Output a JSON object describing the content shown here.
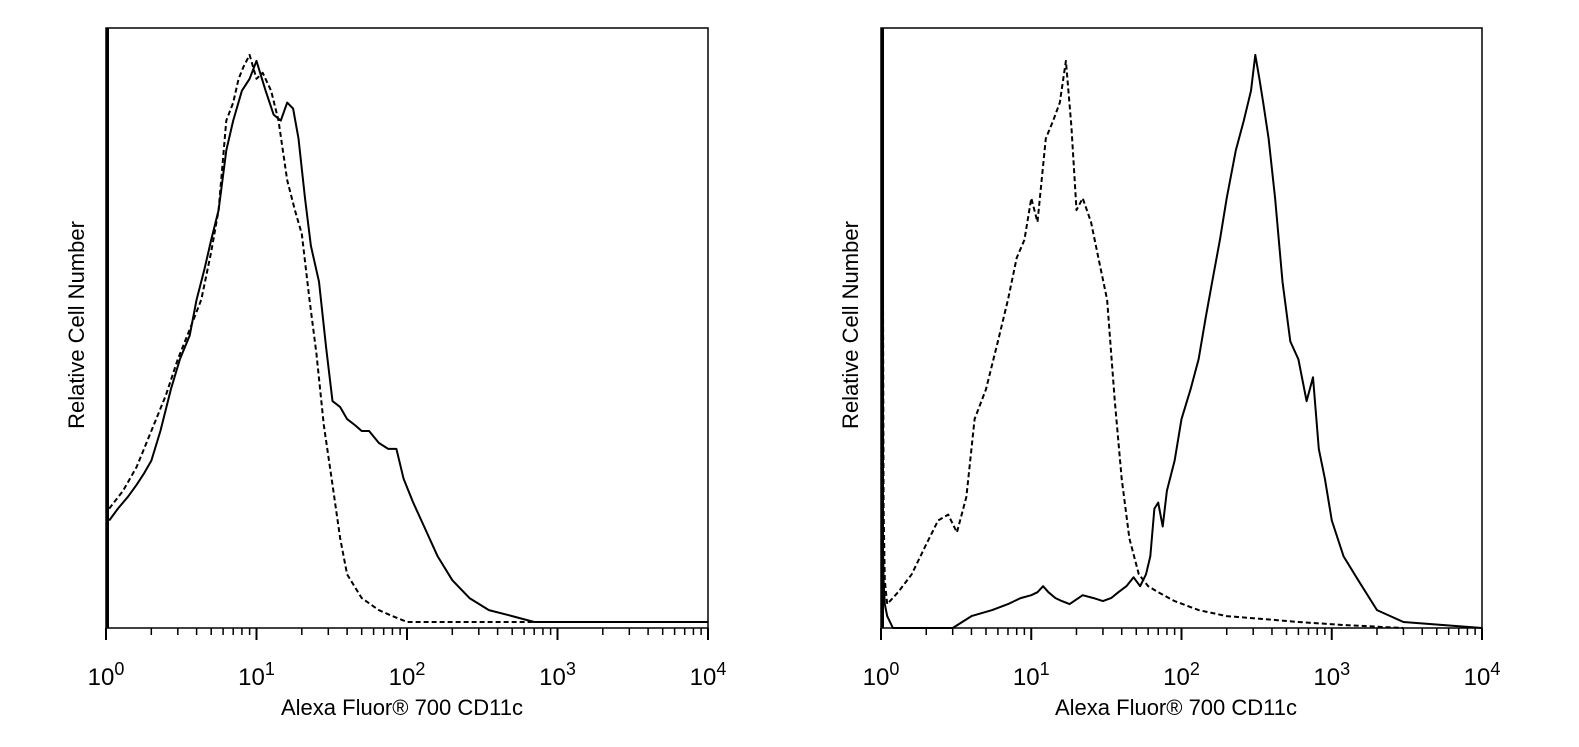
{
  "chart_data": [
    {
      "type": "line",
      "title": "",
      "xlabel": "Alexa Fluor® 700 CD11c",
      "ylabel": "Relative Cell Number",
      "x_scale": "log",
      "xlim": [
        1,
        10000
      ],
      "ylim": [
        0,
        100
      ],
      "grid": false,
      "legend": "none",
      "x_ticks": [
        {
          "base": "10",
          "exp": "0"
        },
        {
          "base": "10",
          "exp": "1"
        },
        {
          "base": "10",
          "exp": "2"
        },
        {
          "base": "10",
          "exp": "3"
        },
        {
          "base": "10",
          "exp": "4"
        }
      ],
      "series": [
        {
          "style": "dashed",
          "x": [
            1.05,
            1.3,
            1.6,
            2.0,
            2.5,
            3.0,
            3.6,
            4.3,
            5.0,
            5.6,
            6.3,
            7.0,
            7.6,
            8.2,
            9.0,
            10.0,
            11.0,
            12.5,
            14.0,
            16.0,
            18.0,
            20.0,
            22.5,
            25.0,
            28.0,
            32.0,
            36.0,
            40.0,
            50.0,
            65.0,
            80.0,
            100,
            130,
            200,
            300,
            500,
            1000,
            10000
          ],
          "y": [
            20,
            23,
            27,
            33,
            39,
            45,
            50,
            55,
            63,
            70,
            85,
            88,
            92,
            94,
            96,
            92,
            93,
            90,
            85,
            75,
            70,
            66,
            55,
            46,
            34,
            24,
            15,
            9,
            5,
            3,
            2,
            1,
            1,
            1,
            1,
            1,
            1,
            1
          ]
        },
        {
          "style": "solid",
          "x": [
            1.05,
            1.2,
            1.4,
            1.6,
            1.8,
            2.0,
            2.3,
            2.7,
            3.1,
            3.6,
            4.0,
            4.5,
            5.0,
            5.6,
            6.3,
            7.0,
            8.0,
            9.0,
            10.0,
            11.5,
            13.0,
            14.5,
            16.0,
            17.5,
            19.0,
            21.0,
            23.0,
            26.0,
            29.0,
            32.0,
            36.0,
            40.0,
            45.0,
            50.0,
            56.0,
            65.0,
            75.0,
            85.0,
            95.0,
            110,
            130,
            160,
            200,
            260,
            350,
            500,
            700,
            1000,
            2000,
            10000
          ],
          "y": [
            18,
            20,
            22,
            24,
            26,
            28,
            33,
            40,
            45,
            49,
            55,
            60,
            65,
            70,
            80,
            85,
            90,
            92,
            95,
            90,
            86,
            85,
            88,
            87,
            82,
            72,
            64,
            58,
            47,
            38,
            37,
            35,
            34,
            33,
            33,
            31,
            30,
            30,
            25,
            21,
            17,
            12,
            8,
            5,
            3,
            2,
            1,
            1,
            1,
            1
          ]
        }
      ]
    },
    {
      "type": "line",
      "title": "",
      "xlabel": "Alexa Fluor® 700 CD11c",
      "ylabel": "Relative Cell Number",
      "x_scale": "log",
      "xlim": [
        1,
        10000
      ],
      "ylim": [
        0,
        100
      ],
      "grid": false,
      "legend": "none",
      "x_ticks": [
        {
          "base": "10",
          "exp": "0"
        },
        {
          "base": "10",
          "exp": "1"
        },
        {
          "base": "10",
          "exp": "2"
        },
        {
          "base": "10",
          "exp": "3"
        },
        {
          "base": "10",
          "exp": "4"
        }
      ],
      "series": [
        {
          "style": "dashed",
          "x": [
            1.02,
            1.04,
            1.06,
            1.1,
            1.3,
            1.6,
            2.0,
            2.4,
            2.8,
            3.2,
            3.7,
            4.2,
            5.0,
            6.0,
            7.0,
            8.0,
            9.0,
            10.0,
            11.0,
            12.5,
            14.0,
            15.5,
            17.0,
            18.5,
            20.0,
            22.0,
            25.0,
            28.0,
            32.0,
            36.0,
            40.0,
            45.0,
            52.0,
            60.0,
            70.0,
            90.0,
            130,
            200,
            350,
            600,
            1200,
            3000
          ],
          "y": [
            100,
            20,
            8,
            4,
            6,
            9,
            14,
            18,
            19,
            16,
            22,
            35,
            40,
            48,
            55,
            62,
            65,
            72,
            68,
            82,
            85,
            88,
            95,
            84,
            70,
            72,
            68,
            62,
            55,
            38,
            25,
            15,
            9,
            7,
            6,
            4.5,
            3,
            2,
            1.5,
            1,
            0.5,
            0
          ]
        },
        {
          "style": "solid",
          "x": [
            1.02,
            1.04,
            1.06,
            1.1,
            1.2,
            1.5,
            2.0,
            3.0,
            4.0,
            5.5,
            7.0,
            8.5,
            10.0,
            11.0,
            12.0,
            13.0,
            14.5,
            16.0,
            18.0,
            22.0,
            26.0,
            30.0,
            34.0,
            38.0,
            43.0,
            48.0,
            53.0,
            58.0,
            62.0,
            66.0,
            70.0,
            75.0,
            80.0,
            90.0,
            100,
            115,
            130,
            145,
            160,
            180,
            200,
            230,
            260,
            290,
            310,
            330,
            350,
            380,
            420,
            470,
            530,
            600,
            680,
            750,
            820,
            900,
            1000,
            1200,
            1500,
            2000,
            3000,
            10000
          ],
          "y": [
            20,
            8,
            4,
            2,
            0,
            0,
            0,
            0,
            2,
            3,
            4,
            5,
            5.5,
            6,
            7,
            6,
            5,
            4.5,
            4,
            5.5,
            5,
            4.5,
            5,
            6,
            7,
            8.5,
            7,
            9,
            12,
            20,
            21,
            17,
            23,
            28,
            35,
            40,
            45,
            52,
            58,
            65,
            72,
            80,
            85,
            90,
            96,
            92,
            88,
            82,
            72,
            58,
            48,
            45,
            38,
            42,
            30,
            25,
            18,
            12,
            8,
            3,
            1,
            0
          ]
        }
      ]
    }
  ]
}
